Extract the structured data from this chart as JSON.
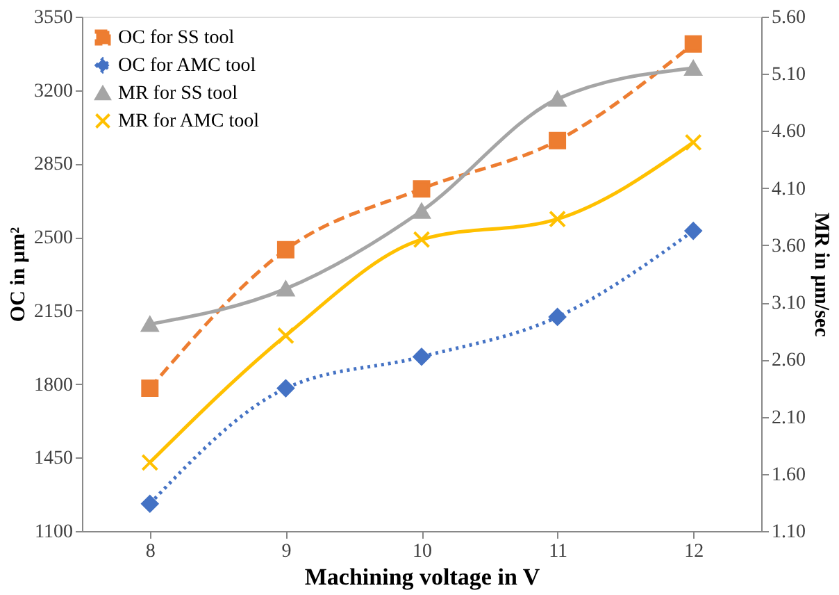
{
  "chart_data": {
    "type": "line",
    "categories": [
      "8",
      "9",
      "10",
      "11",
      "12"
    ],
    "xlabel": "Machining voltage in V",
    "ylabel": "OC in µm²",
    "y2label": "MR  in µm/sec",
    "ylim": [
      1100,
      3550
    ],
    "yticks": [
      1100,
      1450,
      1800,
      2150,
      2500,
      2850,
      3200,
      3550
    ],
    "y2lim": [
      1.1,
      5.6
    ],
    "y2ticks": [
      {
        "value": 1.1,
        "label": "1.10"
      },
      {
        "value": 1.6,
        "label": "1.60"
      },
      {
        "value": 2.1,
        "label": "2.10"
      },
      {
        "value": 2.6,
        "label": "2.60"
      },
      {
        "value": 3.1,
        "label": "3.10"
      },
      {
        "value": 3.6,
        "label": "3.60"
      },
      {
        "value": 4.1,
        "label": "4.10"
      },
      {
        "value": 4.6,
        "label": "4.60"
      },
      {
        "value": 5.1,
        "label": "5.10"
      },
      {
        "value": 5.6,
        "label": "5.60"
      }
    ],
    "grid": false,
    "legend": "top left",
    "series": [
      {
        "name": "OC for SS tool",
        "color": "#ed7d31",
        "marker": "square",
        "line_style": "dashed",
        "values": [
          1780,
          2440,
          2730,
          2960,
          3420
        ]
      },
      {
        "name": "OC for AMC tool",
        "color": "#4472c4",
        "marker": "diamond",
        "line_style": "dotted",
        "values": [
          1230,
          1780,
          1930,
          2120,
          2530
        ]
      },
      {
        "name": "MR for SS tool",
        "color": "#a5a5a5",
        "marker": "triangle",
        "line_style": "solid",
        "axis": "y2",
        "values": [
          2.91,
          3.22,
          3.9,
          4.88,
          5.15
        ]
      },
      {
        "name": "MR for AMC tool",
        "color": "#ffc000",
        "marker": "cross",
        "line_style": "solid",
        "axis": "y2",
        "values": [
          1.7,
          2.81,
          3.65,
          3.83,
          4.5
        ]
      }
    ]
  }
}
